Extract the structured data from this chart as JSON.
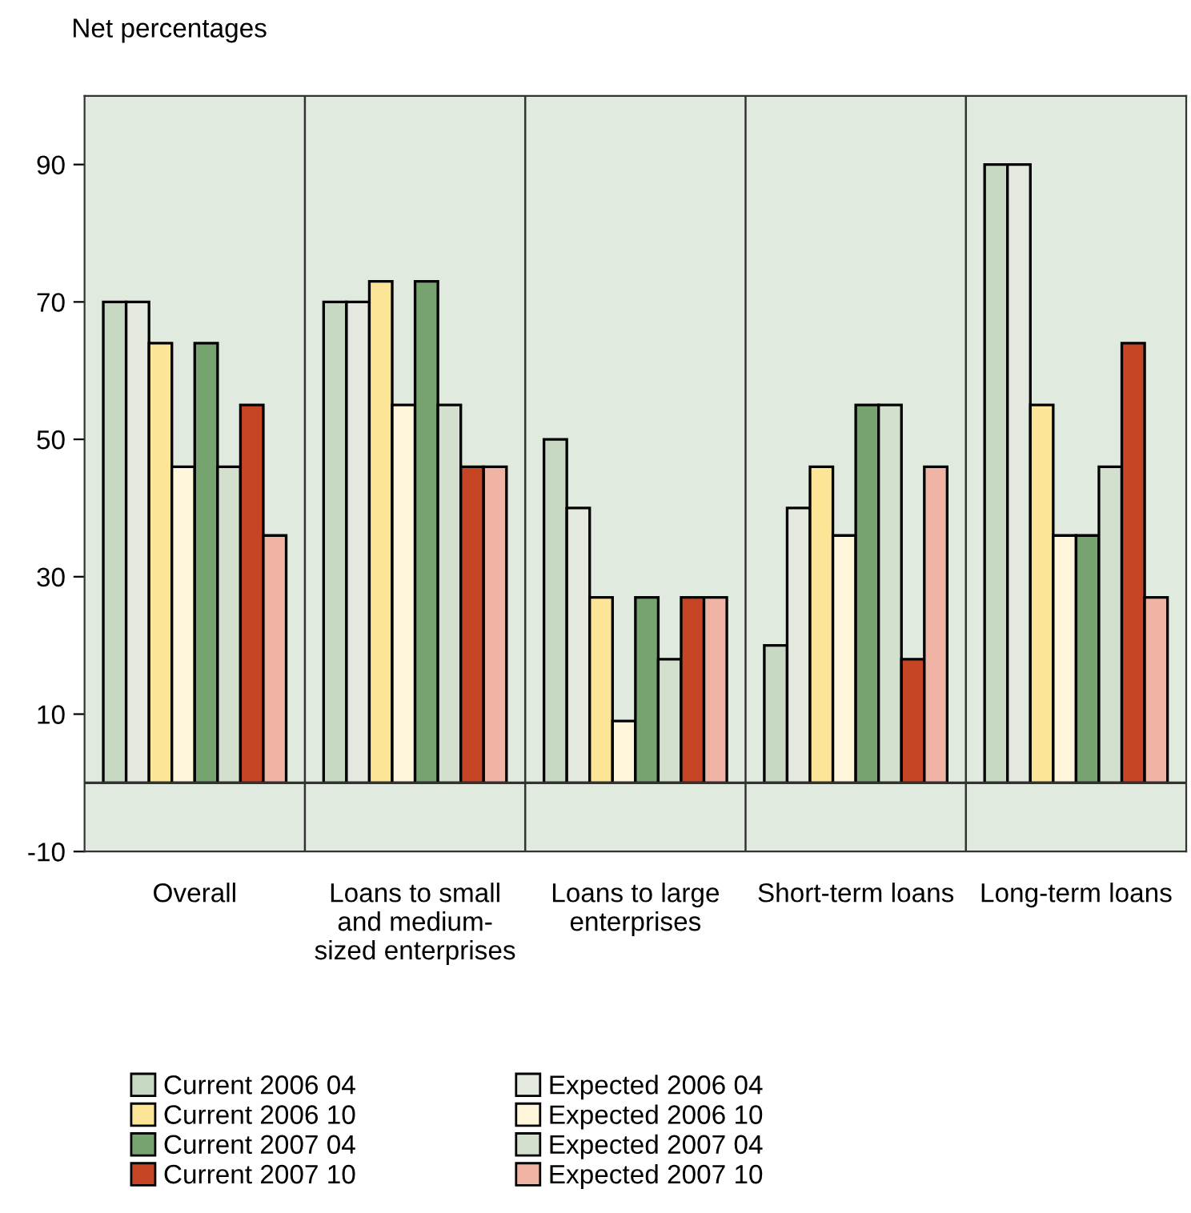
{
  "chart_data": {
    "type": "bar",
    "ylabel": "Net percentages",
    "categories": [
      "Overall",
      "Loans to small\nand medium-\nsized enterprises",
      "Loans to large\nenterprises",
      "Short-term loans",
      "Long-term loans"
    ],
    "series": [
      {
        "name": "Current 2006 04",
        "color": "#c8d9c3",
        "values": [
          70,
          70,
          50,
          20,
          90
        ]
      },
      {
        "name": "Expected 2006 04",
        "color": "#e3e9df",
        "values": [
          70,
          70,
          40,
          40,
          90
        ]
      },
      {
        "name": "Current 2006 10",
        "color": "#fde598",
        "values": [
          64,
          73,
          27,
          46,
          55
        ]
      },
      {
        "name": "Expected 2006 10",
        "color": "#fff6dc",
        "values": [
          46,
          55,
          9,
          36,
          36
        ]
      },
      {
        "name": "Current 2007 04",
        "color": "#76a36f",
        "values": [
          64,
          73,
          27,
          55,
          36
        ]
      },
      {
        "name": "Expected 2007 04",
        "color": "#d3e0cd",
        "values": [
          46,
          55,
          18,
          55,
          46
        ]
      },
      {
        "name": "Current 2007 10",
        "color": "#c64524",
        "values": [
          55,
          46,
          27,
          18,
          64
        ]
      },
      {
        "name": "Expected 2007 10",
        "color": "#f0b4a4",
        "values": [
          36,
          46,
          27,
          46,
          27
        ]
      }
    ],
    "ylim": [
      -10,
      100
    ],
    "yticks": [
      -10,
      10,
      30,
      50,
      70,
      90
    ],
    "ref_lines": [
      {
        "axis": "y",
        "value": 0,
        "color": "#333333"
      }
    ],
    "grid": "x",
    "legend": "bottom"
  }
}
